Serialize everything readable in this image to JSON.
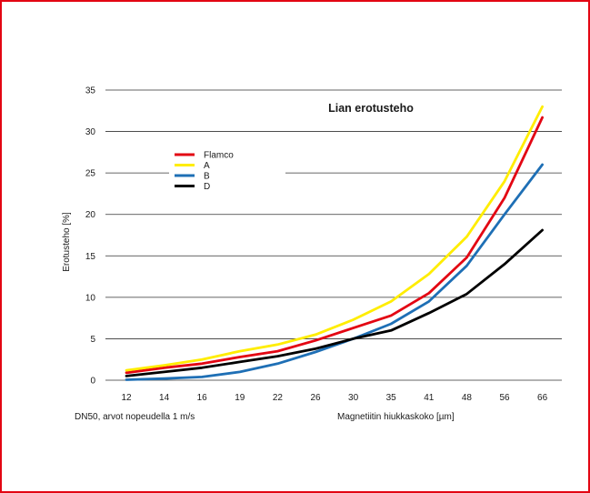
{
  "chart_data": {
    "type": "line",
    "title": "Lian erotusteho",
    "ylabel": "Erotusteho [%]",
    "xlabel": "Magnetiitin hiukkaskoko [µm]",
    "note": "DN50, arvot nopeudella 1 m/s",
    "categories": [
      "12",
      "14",
      "16",
      "19",
      "22",
      "26",
      "30",
      "35",
      "41",
      "48",
      "56",
      "66"
    ],
    "yticks": [
      0,
      5,
      10,
      15,
      20,
      25,
      30,
      35
    ],
    "ylim": [
      0,
      35
    ],
    "grid": true,
    "legend_position": "top-left",
    "series": [
      {
        "name": "Flamco",
        "color": "#e30613",
        "values": [
          0.9,
          1.5,
          2.0,
          2.8,
          3.5,
          4.8,
          6.3,
          7.8,
          10.5,
          14.8,
          22.0,
          31.7
        ]
      },
      {
        "name": "A",
        "color": "#ffed00",
        "values": [
          1.2,
          1.8,
          2.5,
          3.5,
          4.3,
          5.5,
          7.3,
          9.5,
          12.8,
          17.3,
          24.0,
          33.0
        ]
      },
      {
        "name": "B",
        "color": "#1e6fb5",
        "values": [
          0.05,
          0.2,
          0.4,
          1.0,
          2.0,
          3.4,
          5.0,
          6.8,
          9.5,
          13.8,
          20.0,
          26.0
        ]
      },
      {
        "name": "D",
        "color": "#000000",
        "values": [
          0.5,
          1.0,
          1.5,
          2.2,
          2.9,
          3.8,
          5.0,
          6.0,
          8.1,
          10.4,
          14.0,
          18.1
        ]
      }
    ]
  },
  "colors": {
    "frame": "#e30613",
    "grid": "#333333",
    "text": "#1a1a1a"
  }
}
